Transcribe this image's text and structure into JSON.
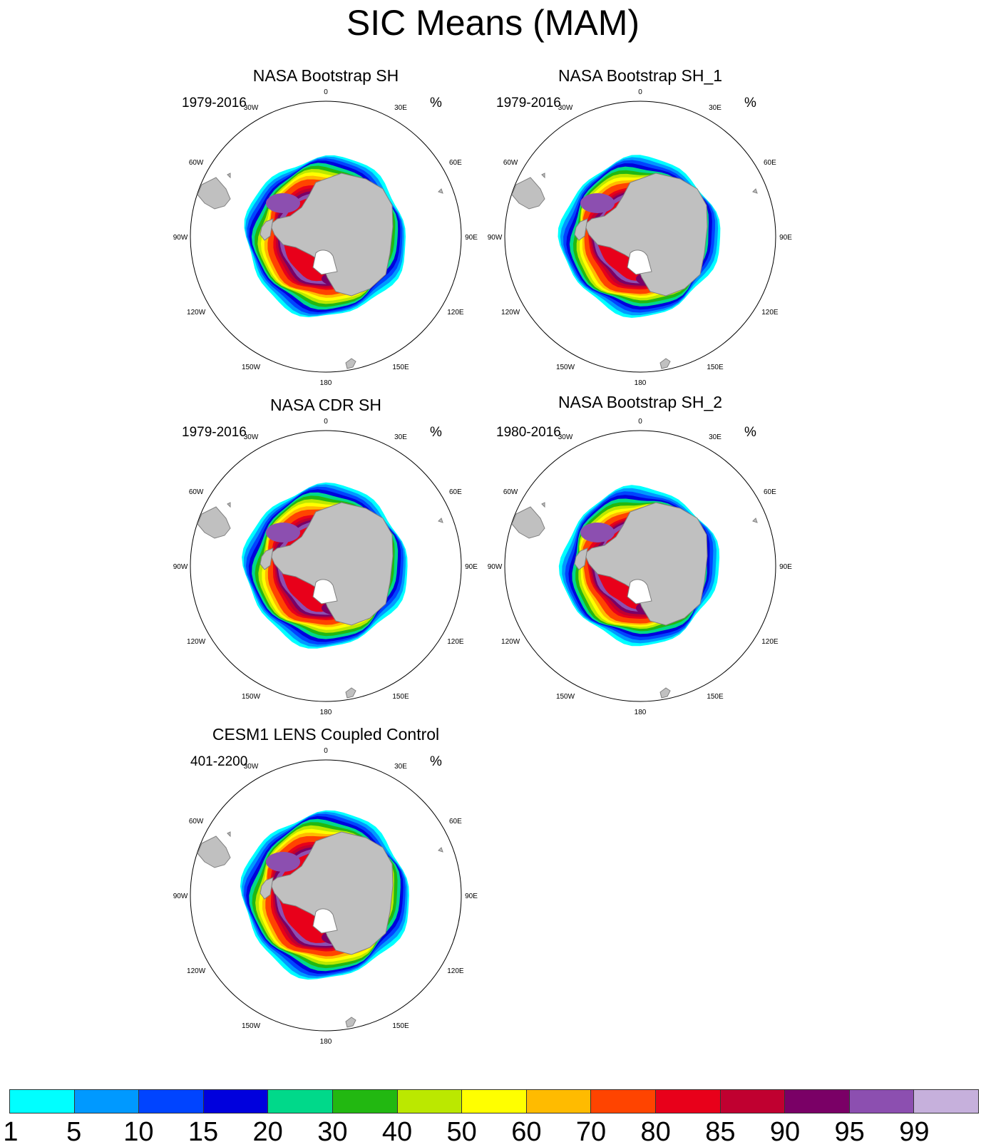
{
  "title": "SIC Means (MAM)",
  "panels": [
    {
      "title": "NASA Bootstrap SH",
      "period": "1979-2016",
      "unit": "%"
    },
    {
      "title": "NASA Bootstrap SH_1",
      "period": "1979-2016",
      "unit": "%"
    },
    {
      "title": "NASA CDR SH",
      "period": "1979-2016",
      "unit": "%"
    },
    {
      "title": "NASA Bootstrap SH_2",
      "period": "1980-2016",
      "unit": "%"
    },
    {
      "title": "CESM1 LENS Coupled Control",
      "period": "401-2200",
      "unit": "%"
    }
  ],
  "longitude_labels": [
    "0",
    "30E",
    "60E",
    "90E",
    "120E",
    "150E",
    "180",
    "150W",
    "120W",
    "90W",
    "60W",
    "30W"
  ],
  "colorbar": {
    "labels": [
      "1",
      "5",
      "10",
      "15",
      "20",
      "30",
      "40",
      "50",
      "60",
      "70",
      "80",
      "85",
      "90",
      "95",
      "99"
    ],
    "colors": [
      "#00ffff",
      "#0099ff",
      "#0044ff",
      "#0000dd",
      "#00d98a",
      "#22b811",
      "#bbe800",
      "#ffff00",
      "#ffbb00",
      "#ff4400",
      "#e8001a",
      "#c00030",
      "#7a0066",
      "#8c4fb0",
      "#c6b0dc"
    ]
  },
  "colors": {
    "land": "#c0c0c0",
    "coast": "#808080"
  }
}
